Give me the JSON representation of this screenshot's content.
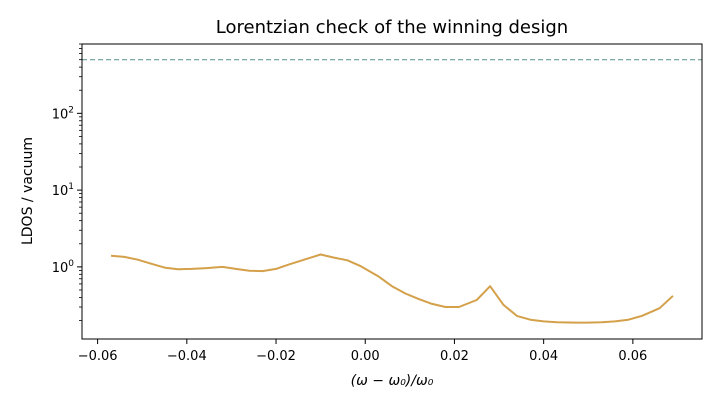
{
  "chart_data": {
    "type": "line",
    "title": "Lorentzian check of the winning design",
    "xlabel": "(ω − ω₀)/ω₀",
    "ylabel": "LDOS / vacuum",
    "y_scale": "log",
    "xlim": [
      -0.0635,
      0.0755
    ],
    "ylim": [
      0.115,
      800
    ],
    "x_ticks": [
      -0.06,
      -0.04,
      -0.02,
      0.0,
      0.02,
      0.04,
      0.06
    ],
    "x_tick_labels": [
      "−0.06",
      "−0.04",
      "−0.02",
      "0.00",
      "0.02",
      "0.04",
      "0.06"
    ],
    "y_ticks": [
      1,
      10,
      100
    ],
    "y_tick_labels": [
      {
        "base": "10",
        "exp": "0"
      },
      {
        "base": "10",
        "exp": "1"
      },
      {
        "base": "10",
        "exp": "2"
      }
    ],
    "grid": false,
    "reference_line": {
      "y": 500,
      "color": "#6a9e96",
      "style": "dashed"
    },
    "series": [
      {
        "color": "#d4a04a",
        "x": [
          -0.057,
          -0.054,
          -0.051,
          -0.048,
          -0.045,
          -0.042,
          -0.039,
          -0.036,
          -0.032,
          -0.029,
          -0.026,
          -0.023,
          -0.02,
          -0.017,
          -0.013,
          -0.01,
          -0.007,
          -0.004,
          -0.001,
          0.003,
          0.006,
          0.009,
          0.012,
          0.015,
          0.018,
          0.021,
          0.025,
          0.028,
          0.031,
          0.034,
          0.037,
          0.04,
          0.043,
          0.047,
          0.05,
          0.053,
          0.056,
          0.059,
          0.062,
          0.066,
          0.069
        ],
        "y": [
          1.4,
          1.35,
          1.24,
          1.1,
          0.98,
          0.93,
          0.94,
          0.96,
          1.0,
          0.94,
          0.89,
          0.88,
          0.94,
          1.08,
          1.28,
          1.45,
          1.32,
          1.22,
          1.02,
          0.75,
          0.56,
          0.45,
          0.38,
          0.33,
          0.3,
          0.3,
          0.37,
          0.56,
          0.32,
          0.23,
          0.205,
          0.195,
          0.19,
          0.188,
          0.188,
          0.19,
          0.195,
          0.205,
          0.23,
          0.29,
          0.42
        ]
      }
    ]
  }
}
